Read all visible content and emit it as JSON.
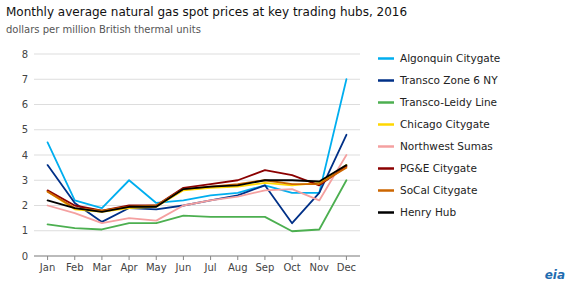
{
  "chart_data": {
    "type": "line",
    "title": "Monthly average natural gas spot prices at key trading hubs, 2016",
    "subtitle": "dollars per million British thermal units",
    "annotations": [
      "eia"
    ],
    "categories": [
      "Jan",
      "Feb",
      "Mar",
      "Apr",
      "May",
      "Jun",
      "Jul",
      "Aug",
      "Sep",
      "Oct",
      "Nov",
      "Dec"
    ],
    "series": [
      {
        "name": "Algonquin Citygate",
        "color": "#00AEEF",
        "values": [
          4.5,
          2.2,
          1.9,
          3.0,
          2.1,
          2.2,
          2.4,
          2.5,
          2.8,
          2.5,
          2.5,
          7.0
        ]
      },
      {
        "name": "Transco Zone 6 NY",
        "color": "#003087",
        "values": [
          3.6,
          2.1,
          1.35,
          1.9,
          1.85,
          2.0,
          2.2,
          2.4,
          2.8,
          1.3,
          2.5,
          4.8
        ]
      },
      {
        "name": "Transco-Leidy Line",
        "color": "#4CAF50",
        "values": [
          1.25,
          1.1,
          1.05,
          1.3,
          1.3,
          1.6,
          1.55,
          1.55,
          1.55,
          0.98,
          1.05,
          3.0
        ]
      },
      {
        "name": "Chicago Citygate",
        "color": "#FFD700",
        "values": [
          2.55,
          1.85,
          1.75,
          1.9,
          1.95,
          2.6,
          2.7,
          2.75,
          2.9,
          2.8,
          2.9,
          3.6
        ]
      },
      {
        "name": "Northwest Sumas",
        "color": "#F4A0A0",
        "values": [
          2.0,
          1.7,
          1.3,
          1.5,
          1.4,
          2.0,
          2.2,
          2.35,
          2.6,
          2.65,
          2.2,
          4.0
        ]
      },
      {
        "name": "PG&E Citygate",
        "color": "#8B0000",
        "values": [
          2.6,
          2.0,
          1.8,
          2.0,
          2.0,
          2.7,
          2.85,
          3.0,
          3.4,
          3.2,
          2.8,
          3.55
        ]
      },
      {
        "name": "SoCal Citygate",
        "color": "#CC6600",
        "values": [
          2.55,
          1.9,
          1.8,
          1.95,
          2.0,
          2.65,
          2.75,
          2.85,
          3.0,
          2.85,
          2.85,
          3.5
        ]
      },
      {
        "name": "Henry Hub",
        "color": "#000000",
        "values": [
          2.2,
          1.9,
          1.75,
          1.95,
          1.95,
          2.65,
          2.75,
          2.8,
          3.0,
          3.0,
          2.95,
          3.6
        ]
      }
    ],
    "ylim": [
      0,
      8
    ],
    "yticks": [
      0,
      1,
      2,
      3,
      4,
      5,
      6,
      7,
      8
    ],
    "grid": true,
    "legend": "right"
  }
}
